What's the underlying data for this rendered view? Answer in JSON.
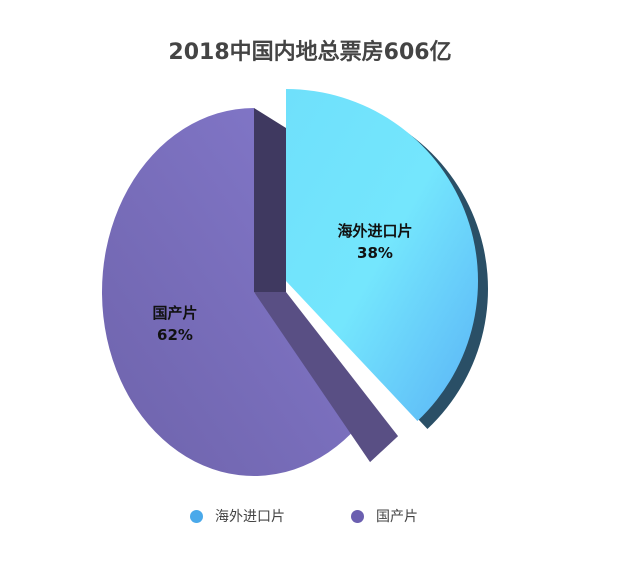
{
  "chart_data": {
    "type": "pie",
    "title": "2018中国内地总票房606亿",
    "slices": [
      {
        "label": "海外进口片",
        "value": 38,
        "display": "38%",
        "color": "#5bbcf5",
        "exploded": true
      },
      {
        "label": "国产片",
        "value": 62,
        "display": "62%",
        "color": "#7b6fc0",
        "exploded": false
      }
    ],
    "legend": "bottom",
    "style": "3d"
  }
}
